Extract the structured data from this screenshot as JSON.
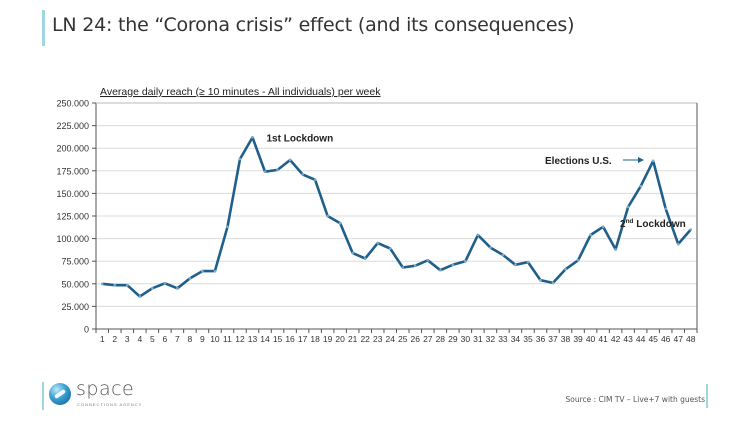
{
  "page": {
    "title": "LN 24: the “Corona crisis” effect (and its consequences)",
    "source": "Source : CIM TV – Live+7 with guests",
    "logo_name": "space",
    "logo_tagline": "CONNECTIONS AGENCY",
    "accent_color": "#9fd6e2"
  },
  "chart_data": {
    "type": "line",
    "title": "Average daily reach (≥ 10 minutes  - All individuals) per week",
    "xlabel": "",
    "ylabel": "",
    "ylim": [
      0,
      250000
    ],
    "yticks": [
      0,
      25000,
      50000,
      75000,
      100000,
      125000,
      150000,
      175000,
      200000,
      225000,
      250000
    ],
    "ytick_labels": [
      "0",
      "25.000",
      "50.000",
      "75.000",
      "100.000",
      "125.000",
      "150.000",
      "175.000",
      "200.000",
      "225.000",
      "250.000"
    ],
    "grid": true,
    "line_color": "#1f5f8b",
    "x": [
      1,
      2,
      3,
      4,
      5,
      6,
      7,
      8,
      9,
      10,
      11,
      12,
      13,
      14,
      15,
      16,
      17,
      18,
      19,
      20,
      21,
      22,
      23,
      24,
      25,
      26,
      27,
      28,
      29,
      30,
      31,
      32,
      33,
      34,
      35,
      36,
      37,
      38,
      39,
      40,
      41,
      42,
      43,
      44,
      45,
      46,
      47,
      48
    ],
    "series": [
      {
        "name": "Average daily reach",
        "values": [
          50000,
          48500,
          48500,
          36000,
          45000,
          50500,
          45000,
          56000,
          64000,
          64000,
          113000,
          188000,
          212000,
          174000,
          176000,
          187000,
          171000,
          165000,
          125000,
          117000,
          84000,
          78000,
          95000,
          89000,
          68000,
          70000,
          76000,
          65000,
          71000,
          75000,
          104000,
          90000,
          82000,
          71000,
          74000,
          54000,
          51000,
          66000,
          76000,
          104000,
          113000,
          88000,
          135000,
          158000,
          186000,
          133000,
          94000,
          110000
        ]
      }
    ],
    "annotations": [
      {
        "text": "1st Lockdown",
        "x": 13,
        "position": "right-of-peak"
      },
      {
        "text": "Elections U.S.",
        "x": 45,
        "arrow": true,
        "position": "left-of-peak"
      },
      {
        "text": "2nd Lockdown",
        "sup": "nd",
        "base": "2",
        "label": "Lockdown",
        "x": 46,
        "position": "right"
      }
    ]
  }
}
